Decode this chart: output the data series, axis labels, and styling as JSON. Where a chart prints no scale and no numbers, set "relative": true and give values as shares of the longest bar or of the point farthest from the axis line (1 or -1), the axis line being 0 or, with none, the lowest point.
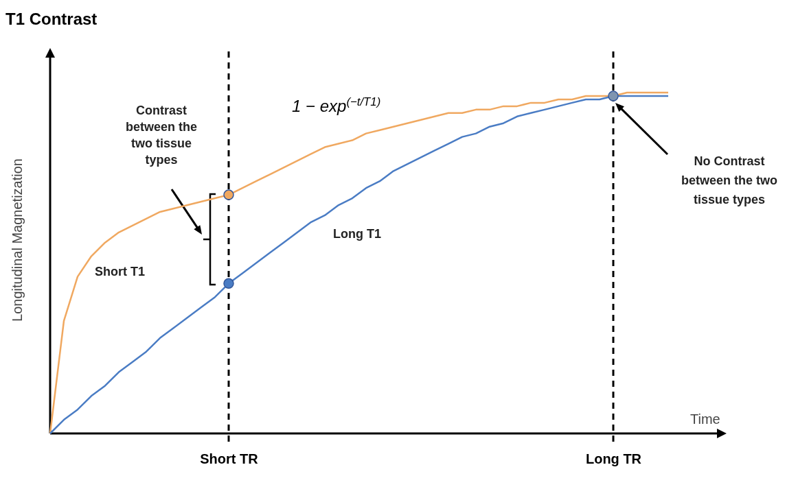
{
  "chart_data": {
    "type": "line",
    "title": "T1 Contrast",
    "xlabel": "Time",
    "ylabel": "Longitudinal Magnetization",
    "relative": true,
    "categories": [
      null,
      null,
      null,
      null,
      null,
      null,
      null,
      null,
      null,
      null,
      null,
      null,
      null,
      "Short TR",
      null,
      null,
      null,
      null,
      null,
      null,
      null,
      null,
      null,
      null,
      null,
      null,
      null,
      null,
      null,
      null,
      null,
      null,
      null,
      null,
      null,
      null,
      null,
      null,
      null,
      null,
      null,
      "Long TR",
      null,
      null,
      null,
      null
    ],
    "series": [
      {
        "name": "Short T1",
        "color": "#f0a860",
        "values": [
          0,
          0.33,
          0.46,
          0.52,
          0.56,
          0.59,
          0.61,
          0.63,
          0.65,
          0.66,
          0.67,
          0.68,
          0.69,
          0.7,
          0.72,
          0.74,
          0.76,
          0.78,
          0.8,
          0.82,
          0.84,
          0.85,
          0.86,
          0.88,
          0.89,
          0.9,
          0.91,
          0.92,
          0.93,
          0.94,
          0.94,
          0.95,
          0.95,
          0.96,
          0.96,
          0.97,
          0.97,
          0.98,
          0.98,
          0.99,
          0.99,
          0.99,
          1.0,
          1.0,
          1.0,
          1.0
        ]
      },
      {
        "name": "Long T1",
        "color": "#4a7cc4",
        "values": [
          0,
          0.04,
          0.07,
          0.11,
          0.14,
          0.18,
          0.21,
          0.24,
          0.28,
          0.31,
          0.34,
          0.37,
          0.4,
          0.44,
          0.47,
          0.5,
          0.53,
          0.56,
          0.59,
          0.62,
          0.64,
          0.67,
          0.69,
          0.72,
          0.74,
          0.77,
          0.79,
          0.81,
          0.83,
          0.85,
          0.87,
          0.88,
          0.9,
          0.91,
          0.93,
          0.94,
          0.95,
          0.96,
          0.97,
          0.98,
          0.98,
          0.99,
          0.99,
          0.99,
          0.99,
          0.99
        ]
      },
      {
        "type": "scatter",
        "marker": "circle",
        "x": [
          "Short TR",
          "Short TR",
          "Long TR"
        ],
        "values": [
          0.7,
          0.44,
          0.99
        ],
        "colors": [
          "#f0a860",
          "#4a7cc4",
          "#7f95b0"
        ]
      }
    ],
    "ref_lines": [
      {
        "axis": "x",
        "value": "Short TR",
        "color": "#000000",
        "line_style": "dashed"
      },
      {
        "axis": "x",
        "value": "Long TR",
        "color": "#000000",
        "line_style": "dashed"
      }
    ],
    "annotations": [
      "1 − exp$^{(−t/T1)}$",
      "Contrast between the two tissue types",
      "No Contrast between the two tissue types"
    ]
  }
}
